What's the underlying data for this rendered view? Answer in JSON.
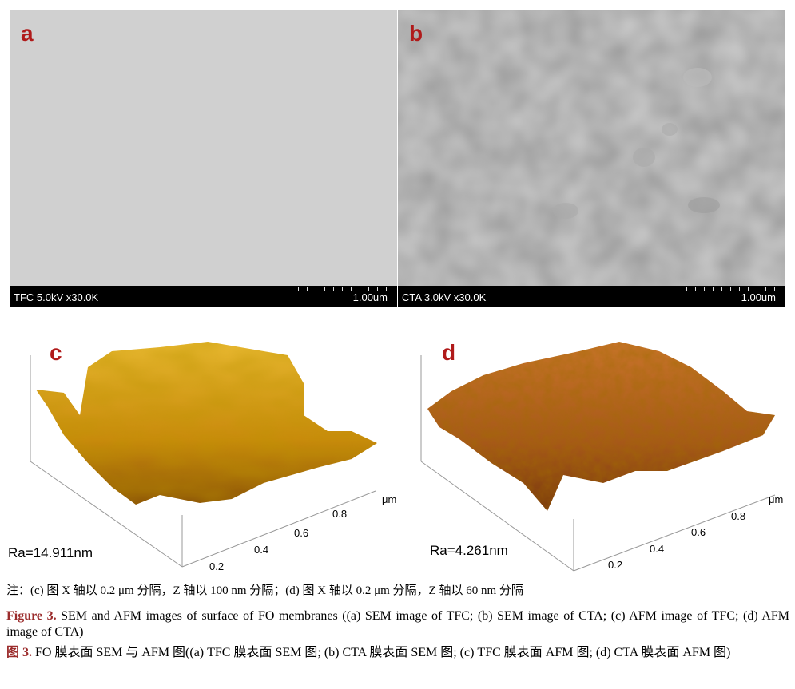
{
  "panels": {
    "a": {
      "label": "a",
      "info": "TFC 5.0kV x30.0K",
      "scale": "1.00um"
    },
    "b": {
      "label": "b",
      "info": "CTA 3.0kV x30.0K",
      "scale": "1.00um"
    },
    "c": {
      "label": "c",
      "ra": "Ra=14.911nm",
      "unit": "μm",
      "ticks": [
        "0.2",
        "0.4",
        "0.6",
        "0.8"
      ]
    },
    "d": {
      "label": "d",
      "ra": "Ra=4.261nm",
      "unit": "μm",
      "ticks": [
        "0.2",
        "0.4",
        "0.6",
        "0.8"
      ]
    }
  },
  "note": "注：(c) 图 X 轴以 0.2 μm 分隔，Z 轴以 100 nm 分隔；(d) 图 X 轴以 0.2 μm 分隔，Z 轴以 60 nm 分隔",
  "caption_en": {
    "prefix": "Figure 3.",
    "text": " SEM and AFM images of surface of FO membranes ((a) SEM image of TFC; (b) SEM image of CTA; (c) AFM image of TFC; (d) AFM image of CTA)"
  },
  "caption_zh": {
    "prefix": "图 3.",
    "text": " FO 膜表面 SEM 与 AFM 图((a) TFC 膜表面 SEM 图; (b) CTA 膜表面 SEM 图; (c) TFC 膜表面 AFM 图; (d) CTA 膜表面 AFM 图)"
  },
  "colors": {
    "accent": "#9b2c2c",
    "panel_label": "#b01a1a",
    "afm_c": "#d9a21a",
    "afm_d": "#b5651d"
  }
}
